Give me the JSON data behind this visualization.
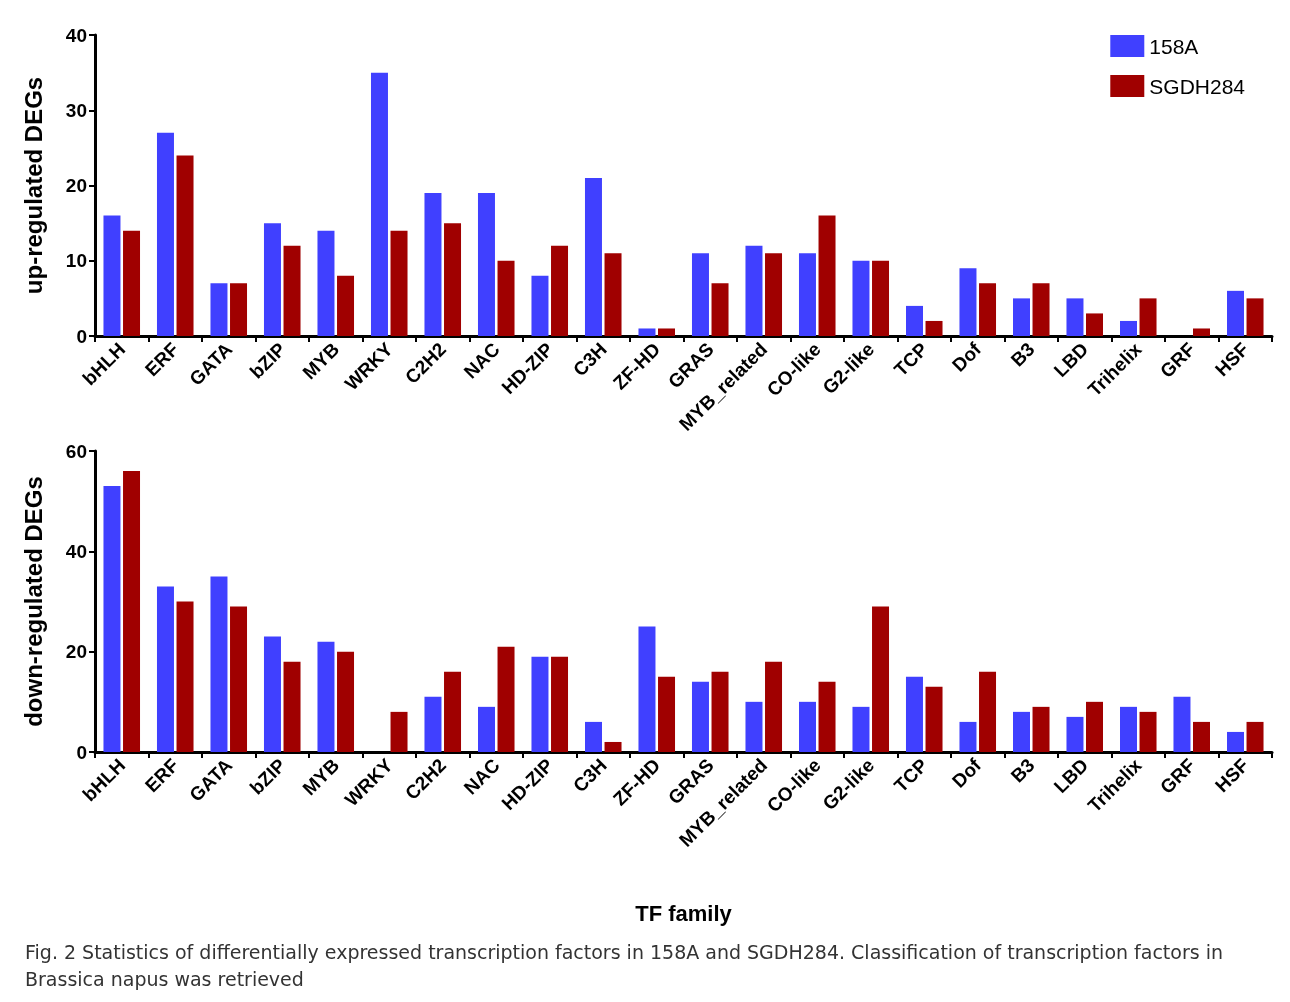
{
  "chart_data": [
    {
      "type": "bar",
      "ylabel": "up-regulated DEGs",
      "categories": [
        "bHLH",
        "ERF",
        "GATA",
        "bZIP",
        "MYB",
        "WRKY",
        "C2H2",
        "NAC",
        "HD-ZIP",
        "C3H",
        "ZF-HD",
        "GRAS",
        "MYB_related",
        "CO-like",
        "G2-like",
        "TCP",
        "Dof",
        "B3",
        "LBD",
        "Trihelix",
        "GRF",
        "HSF"
      ],
      "series": [
        {
          "name": "158A",
          "color": "#4040ff",
          "values": [
            16,
            27,
            7,
            15,
            14,
            35,
            19,
            19,
            8,
            21,
            1,
            11,
            12,
            11,
            10,
            4,
            9,
            5,
            5,
            2,
            0,
            6
          ]
        },
        {
          "name": "SGDH284",
          "color": "#a00000",
          "values": [
            14,
            24,
            7,
            12,
            8,
            14,
            15,
            10,
            12,
            11,
            1,
            7,
            11,
            16,
            10,
            2,
            7,
            7,
            3,
            5,
            1,
            5
          ]
        }
      ],
      "ylim": [
        0,
        40
      ],
      "yticks": [
        0,
        10,
        20,
        30,
        40
      ],
      "grid": false,
      "legend": "top right"
    },
    {
      "type": "bar",
      "ylabel": "down-regulated DEGs",
      "xlabel": "TF family",
      "categories": [
        "bHLH",
        "ERF",
        "GATA",
        "bZIP",
        "MYB",
        "WRKY",
        "C2H2",
        "NAC",
        "HD-ZIP",
        "C3H",
        "ZF-HD",
        "GRAS",
        "MYB_related",
        "CO-like",
        "G2-like",
        "TCP",
        "Dof",
        "B3",
        "LBD",
        "Trihelix",
        "GRF",
        "HSF"
      ],
      "series": [
        {
          "color": "#4040ff",
          "values": [
            53,
            33,
            35,
            23,
            22,
            0,
            11,
            9,
            19,
            6,
            25,
            14,
            10,
            10,
            9,
            15,
            6,
            8,
            7,
            9,
            11,
            4
          ]
        },
        {
          "color": "#a00000",
          "values": [
            56,
            30,
            29,
            18,
            20,
            8,
            16,
            21,
            19,
            2,
            15,
            16,
            18,
            14,
            29,
            13,
            16,
            9,
            10,
            8,
            6,
            6
          ]
        }
      ],
      "ylim": [
        0,
        60
      ],
      "yticks": [
        0,
        20,
        40,
        60
      ],
      "grid": false,
      "legend": false,
      "annotations": [
        "Fig. 2 Statistics of differentially expressed transcription factors in 158A and SGDH284. Classification of transcription factors in Brassica napus was retrieved"
      ]
    }
  ]
}
